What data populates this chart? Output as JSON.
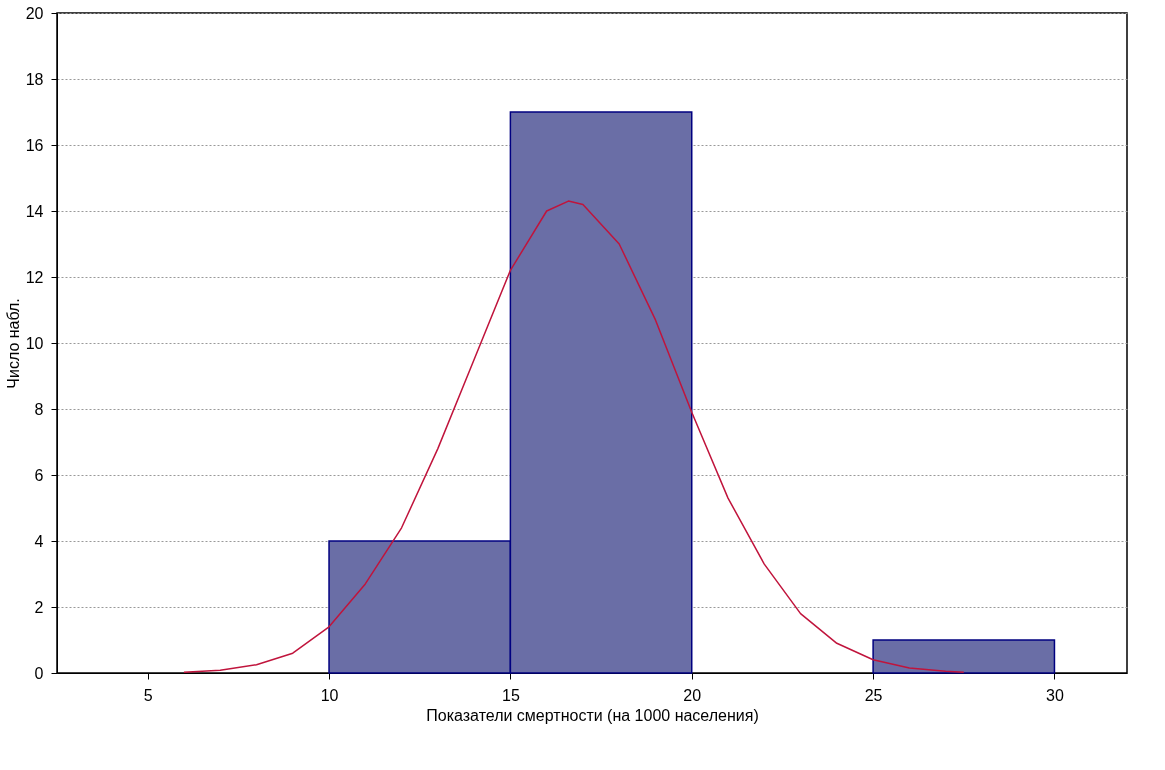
{
  "chart_data": {
    "type": "histogram",
    "xlabel": "Показатели смертности (на 1000 населения)",
    "ylabel": "Число набл.",
    "bins": [
      10,
      15,
      20,
      25,
      30
    ],
    "values": [
      4,
      17,
      0,
      1
    ],
    "color": "#6a6ea6",
    "series": [
      {
        "type": "line",
        "color": "#c0143c",
        "x": [
          6,
          7,
          8,
          9,
          10,
          11,
          12,
          13,
          14,
          15,
          16,
          16.6,
          17,
          18,
          19,
          20,
          21,
          22,
          23,
          24,
          25,
          26,
          27,
          27.5
        ],
        "values": [
          0.02,
          0.08,
          0.25,
          0.6,
          1.4,
          2.7,
          4.4,
          6.8,
          9.5,
          12.2,
          14.0,
          14.3,
          14.2,
          13.0,
          10.7,
          7.9,
          5.3,
          3.3,
          1.8,
          0.9,
          0.4,
          0.15,
          0.05,
          0.02
        ]
      }
    ],
    "xlim": [
      2.5,
      32
    ],
    "xticks": [
      5,
      10,
      15,
      20,
      25,
      30
    ],
    "ylim": [
      0,
      20
    ],
    "yticks": [
      0,
      2,
      4,
      6,
      8,
      10,
      12,
      14,
      16,
      18,
      20
    ],
    "grid": "y",
    "marker": "none",
    "line_style": "solid"
  }
}
